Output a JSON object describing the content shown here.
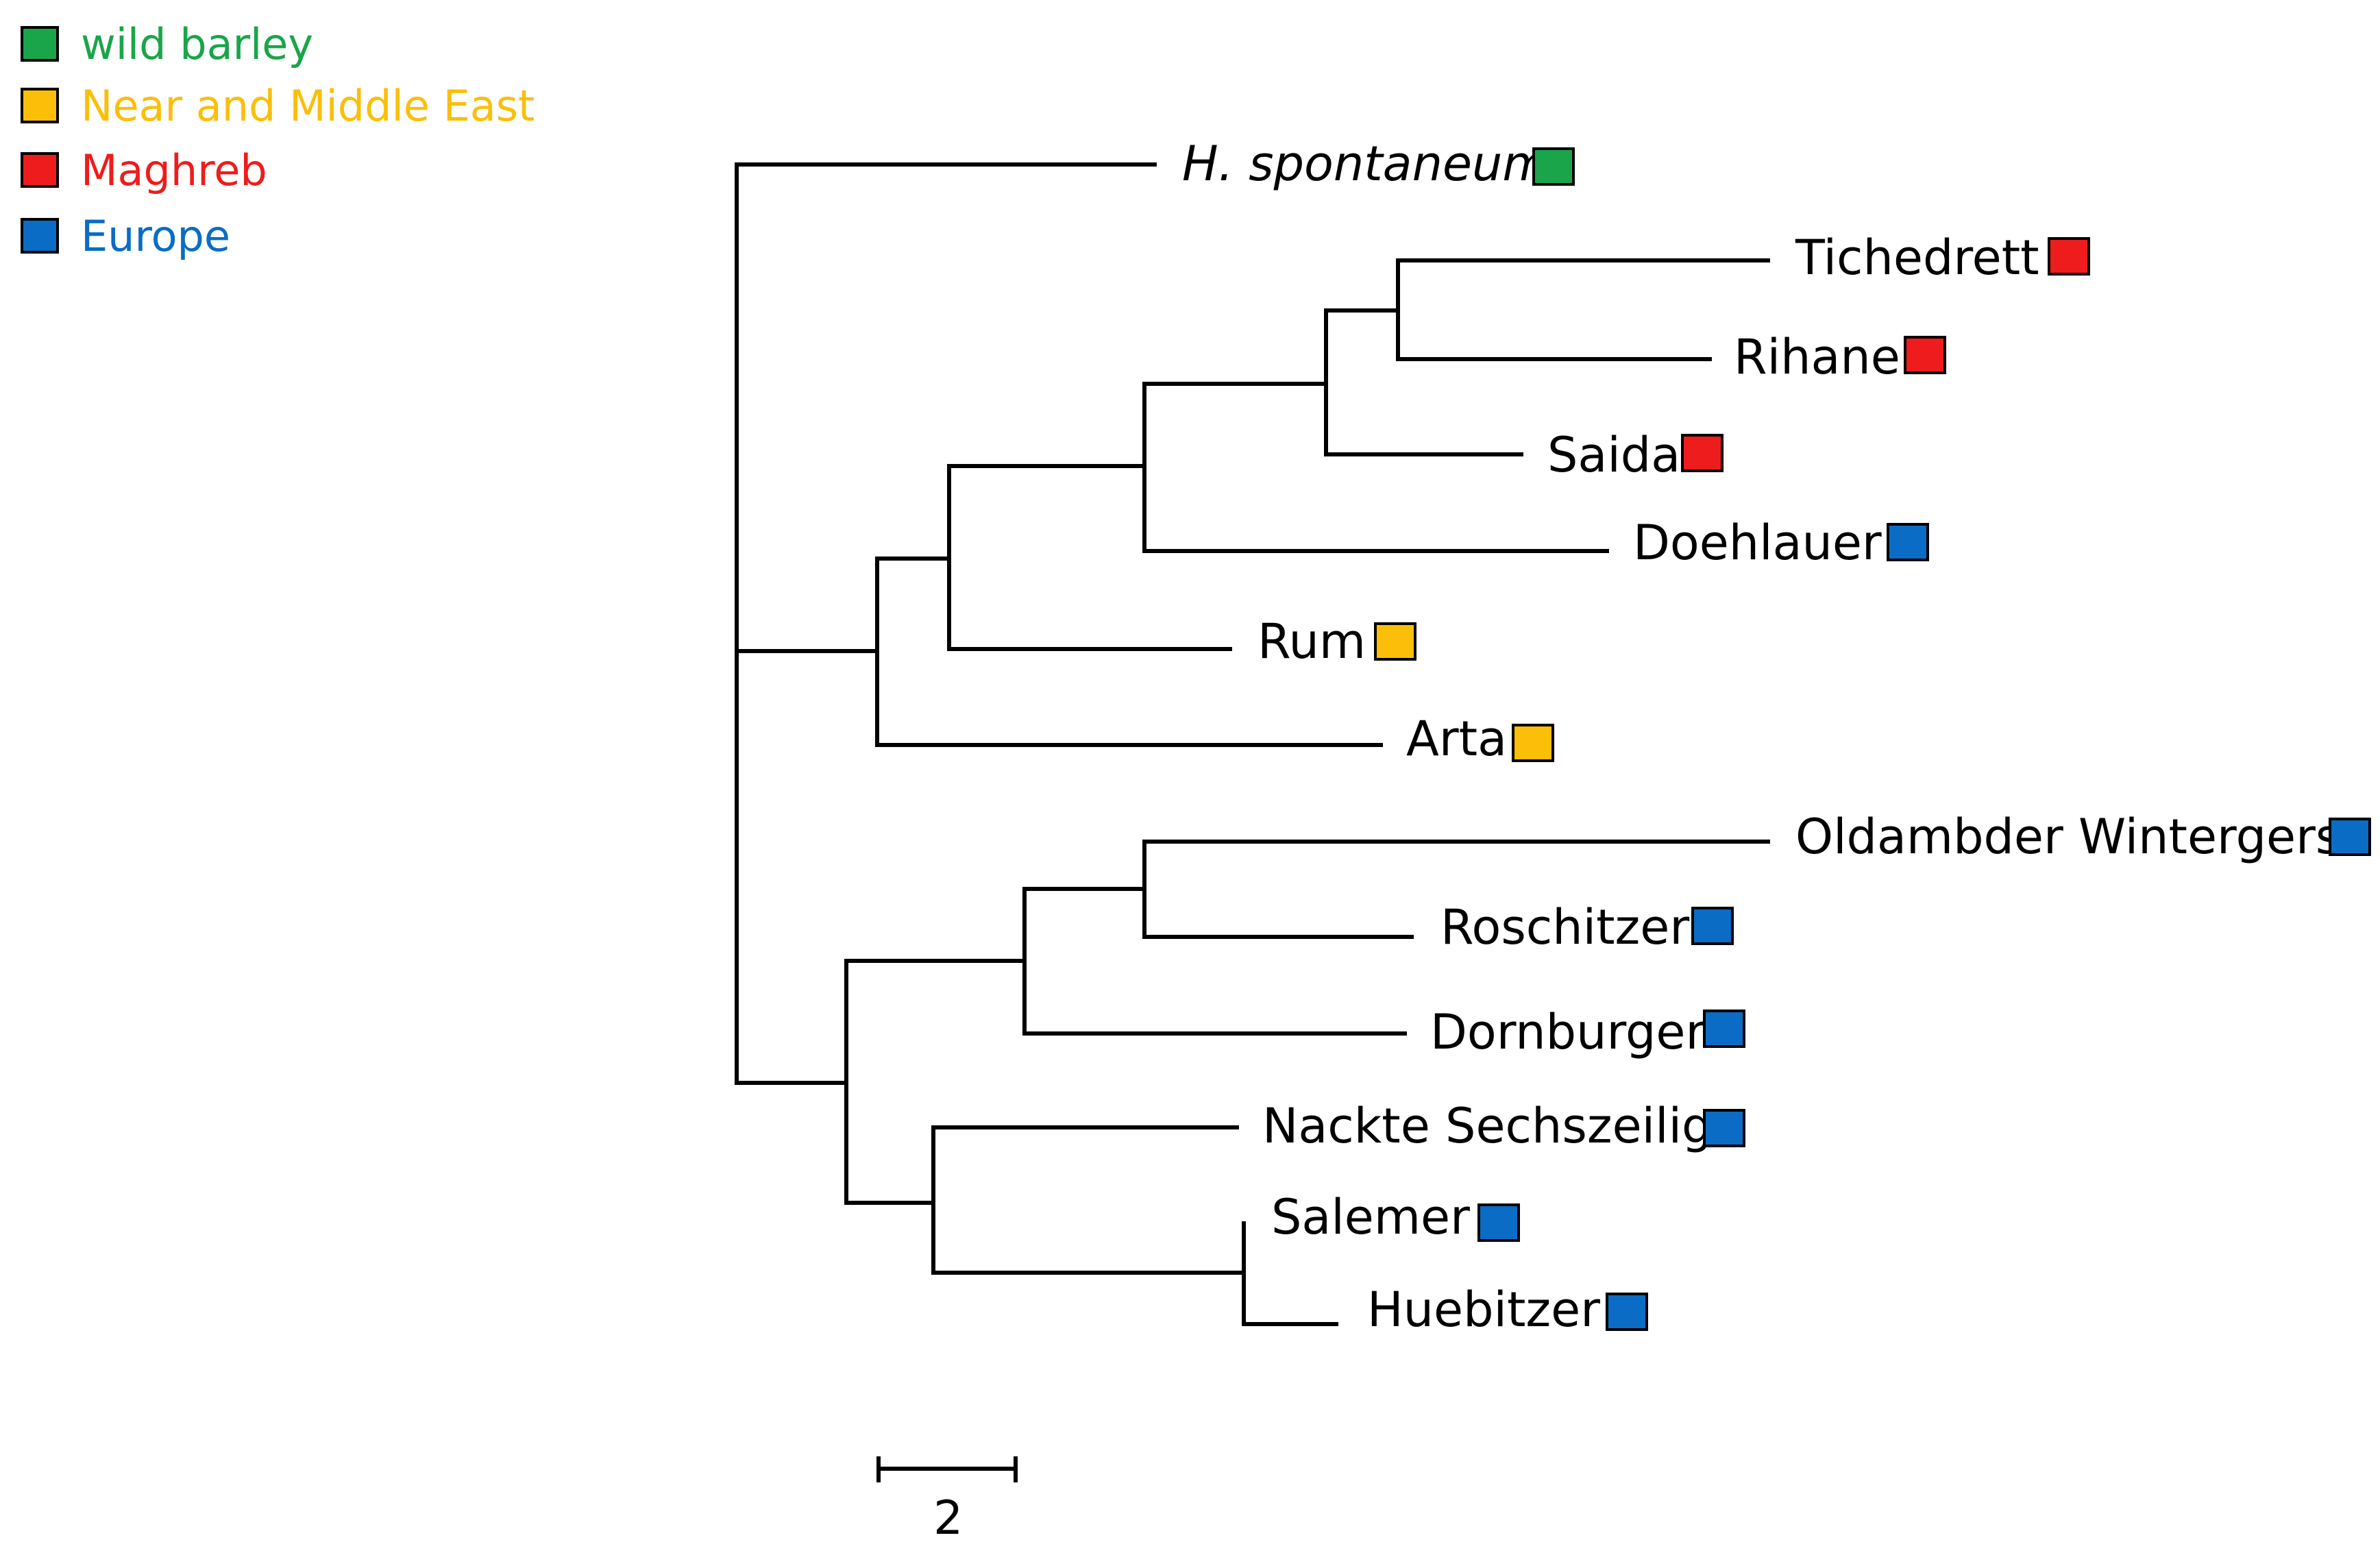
{
  "legend": [
    {
      "label": "wild barley",
      "color": "#1aa54a"
    },
    {
      "label": "Near and Middle East",
      "color": "#fbbf0a"
    },
    {
      "label": "Maghreb",
      "color": "#ee1c1c"
    },
    {
      "label": "Europe",
      "color": "#0a6cc4"
    }
  ],
  "taxa": [
    {
      "name": "H. spontaneum",
      "group": "wild barley",
      "italic": true
    },
    {
      "name": "Tichedrett",
      "group": "Maghreb"
    },
    {
      "name": "Rihane",
      "group": "Maghreb"
    },
    {
      "name": "Saida",
      "group": "Maghreb"
    },
    {
      "name": "Doehlauer",
      "group": "Europe"
    },
    {
      "name": "Rum",
      "group": "Near and Middle East"
    },
    {
      "name": "Arta",
      "group": "Near and Middle East"
    },
    {
      "name": "Oldambder Wintergerst",
      "group": "Europe"
    },
    {
      "name": "Roschitzer",
      "group": "Europe"
    },
    {
      "name": "Dornburger",
      "group": "Europe"
    },
    {
      "name": "Nackte Sechszeilige",
      "group": "Europe"
    },
    {
      "name": "Salemer",
      "group": "Europe"
    },
    {
      "name": "Huebitzer",
      "group": "Europe"
    }
  ],
  "scale_bar": {
    "label": "2"
  }
}
